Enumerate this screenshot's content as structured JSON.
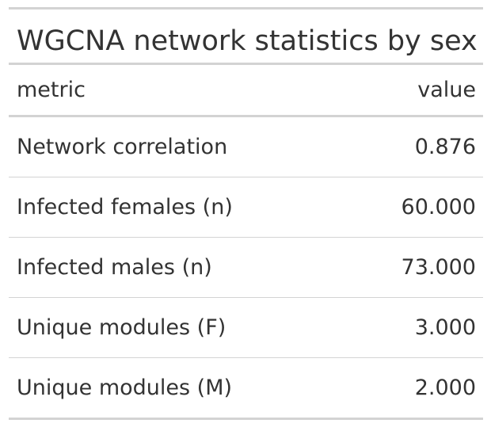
{
  "table": {
    "title": "WGCNA network statistics by sex",
    "columns": {
      "metric": "metric",
      "value": "value"
    },
    "rows": [
      {
        "metric": "Network correlation",
        "value": "0.876"
      },
      {
        "metric": "Infected females (n)",
        "value": "60.000"
      },
      {
        "metric": "Infected males (n)",
        "value": "73.000"
      },
      {
        "metric": "Unique modules (F)",
        "value": "3.000"
      },
      {
        "metric": "Unique modules (M)",
        "value": "2.000"
      }
    ]
  }
}
